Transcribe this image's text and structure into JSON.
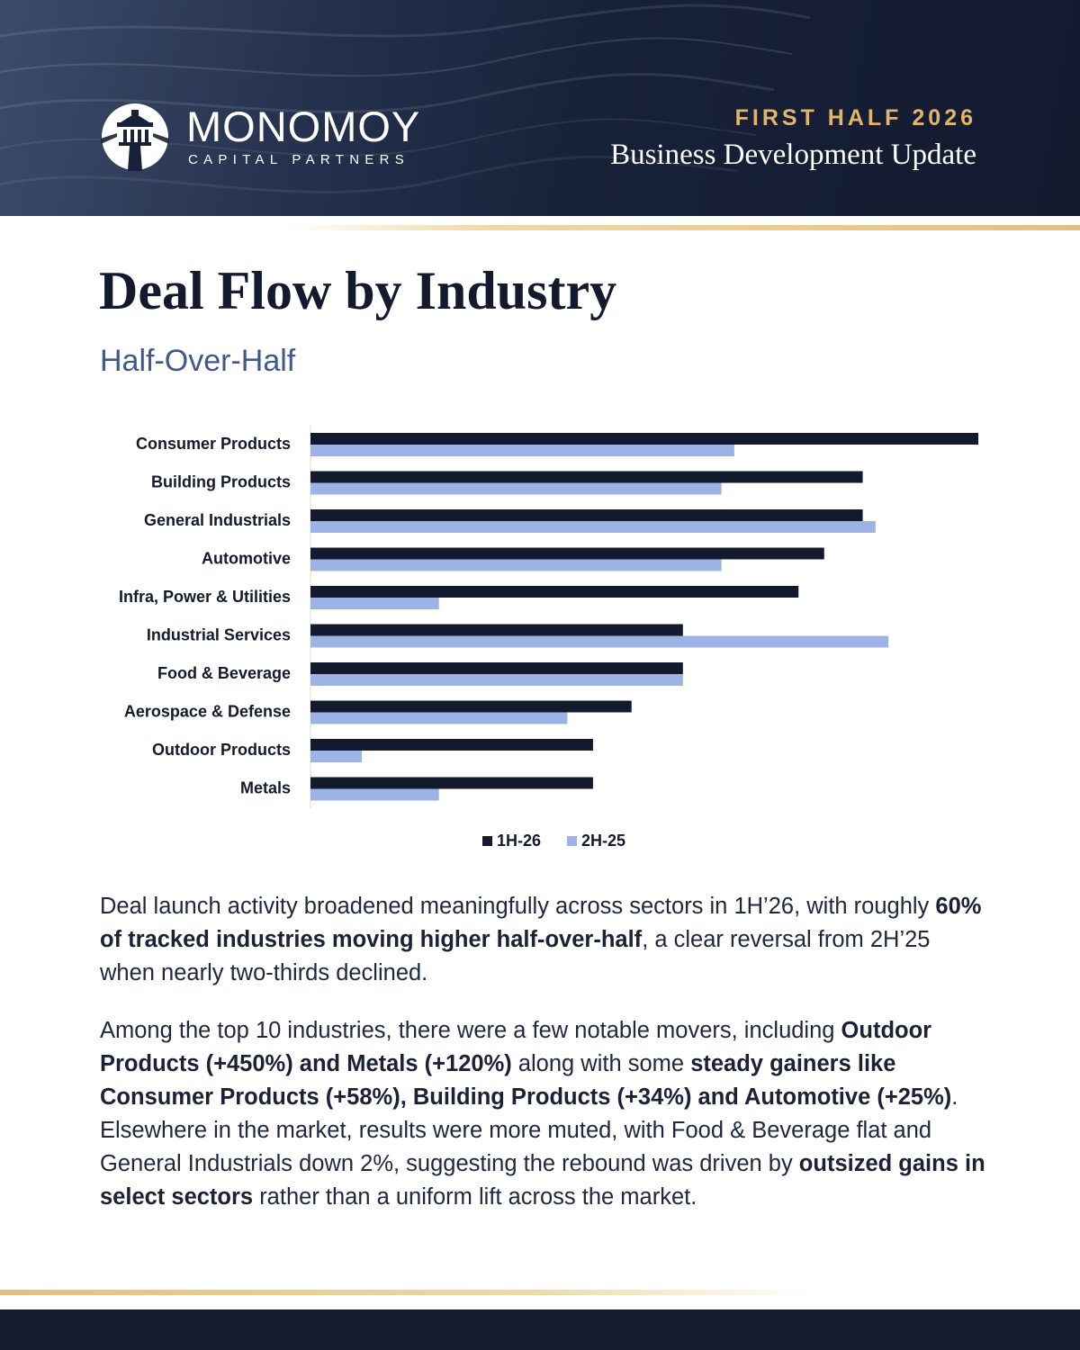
{
  "header": {
    "brand_name": "MONOMOY",
    "brand_sub": "CAPITAL PARTNERS",
    "period": "FIRST HALF 2026",
    "report_title": "Business Development Update"
  },
  "page": {
    "title": "Deal Flow by Industry",
    "subtitle": "Half-Over-Half"
  },
  "colors": {
    "series_1": "#141a2e",
    "series_2": "#9db3e6",
    "gold": "#e2b56a",
    "navy": "#141b2d"
  },
  "chart_data": {
    "type": "bar",
    "orientation": "horizontal",
    "categories": [
      "Consumer Products",
      "Building Products",
      "General Industrials",
      "Automotive",
      "Infra, Power & Utilities",
      "Industrial Services",
      "Food & Beverage",
      "Aerospace & Defense",
      "Outdoor Products",
      "Metals"
    ],
    "series": [
      {
        "name": "1H-26",
        "values": [
          52,
          43,
          43,
          40,
          38,
          29,
          29,
          25,
          22,
          22
        ]
      },
      {
        "name": "2H-25",
        "values": [
          33,
          32,
          44,
          32,
          10,
          45,
          29,
          20,
          4,
          10
        ]
      }
    ],
    "xlim": [
      0,
      52
    ],
    "grid": false,
    "legend_position": "bottom-center"
  },
  "body": {
    "p1": [
      {
        "t": "Deal launch activity broadened meaningfully across sectors in 1H’26, with roughly ",
        "b": false
      },
      {
        "t": "60% of tracked industries moving higher half-over-half",
        "b": true
      },
      {
        "t": ", a clear reversal from 2H’25 when nearly two-thirds declined.",
        "b": false
      }
    ],
    "p2": [
      {
        "t": "Among the top 10 industries, there were a few notable movers, including ",
        "b": false
      },
      {
        "t": "Outdoor Products (+450%) and Metals (+120%)",
        "b": true
      },
      {
        "t": " along with some ",
        "b": false
      },
      {
        "t": "steady gainers like Consumer Products (+58%), Building Products (+34%) and Automotive (+25%)",
        "b": true
      },
      {
        "t": ". Elsewhere in the market, results were more muted, with Food & Beverage flat and General Industrials down 2%, suggesting the rebound was driven by ",
        "b": false
      },
      {
        "t": "outsized gains in select sectors",
        "b": true
      },
      {
        "t": " rather than a uniform lift across the market.",
        "b": false
      }
    ]
  }
}
